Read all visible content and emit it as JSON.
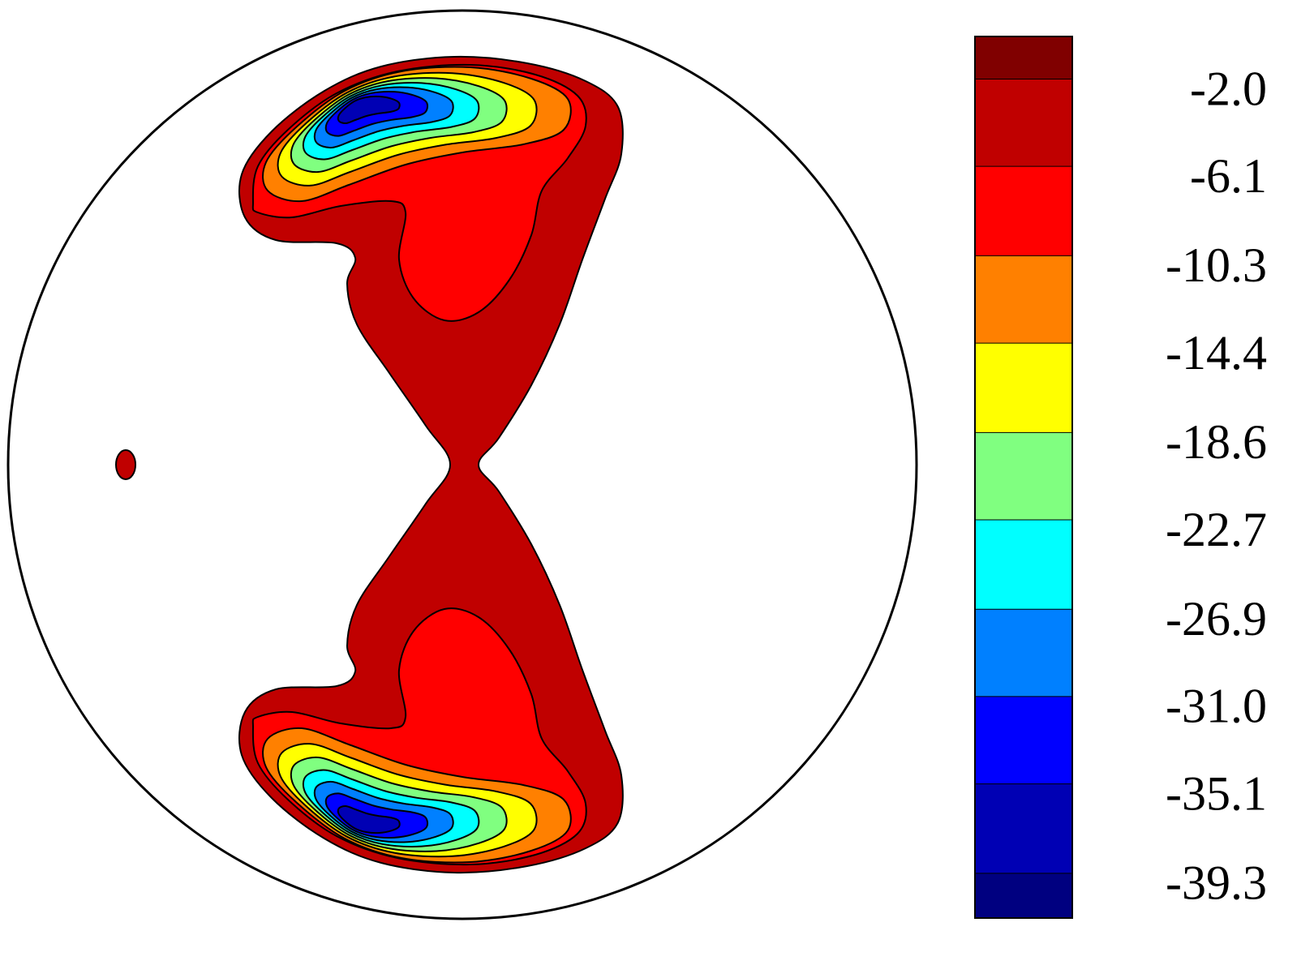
{
  "chart_data": {
    "type": "contour",
    "colorbar": {
      "ylim": [
        -41.4,
        0
      ],
      "yticks": [
        -39.3,
        -35.1,
        {
          "value": -31.0,
          "label": "-31.0"
        },
        -26.9,
        -22.7,
        -18.6,
        -14.4,
        -10.3,
        -6.1,
        {
          "value": -2.0,
          "label": "-2.0"
        }
      ],
      "colors": [
        "#000080",
        "#0000b4",
        "#0000ff",
        "#0080ff",
        "#00ffff",
        "#80ff80",
        "#ffff00",
        "#ff8000",
        "#ff0000",
        "#c00000",
        "#800000"
      ]
    }
  }
}
